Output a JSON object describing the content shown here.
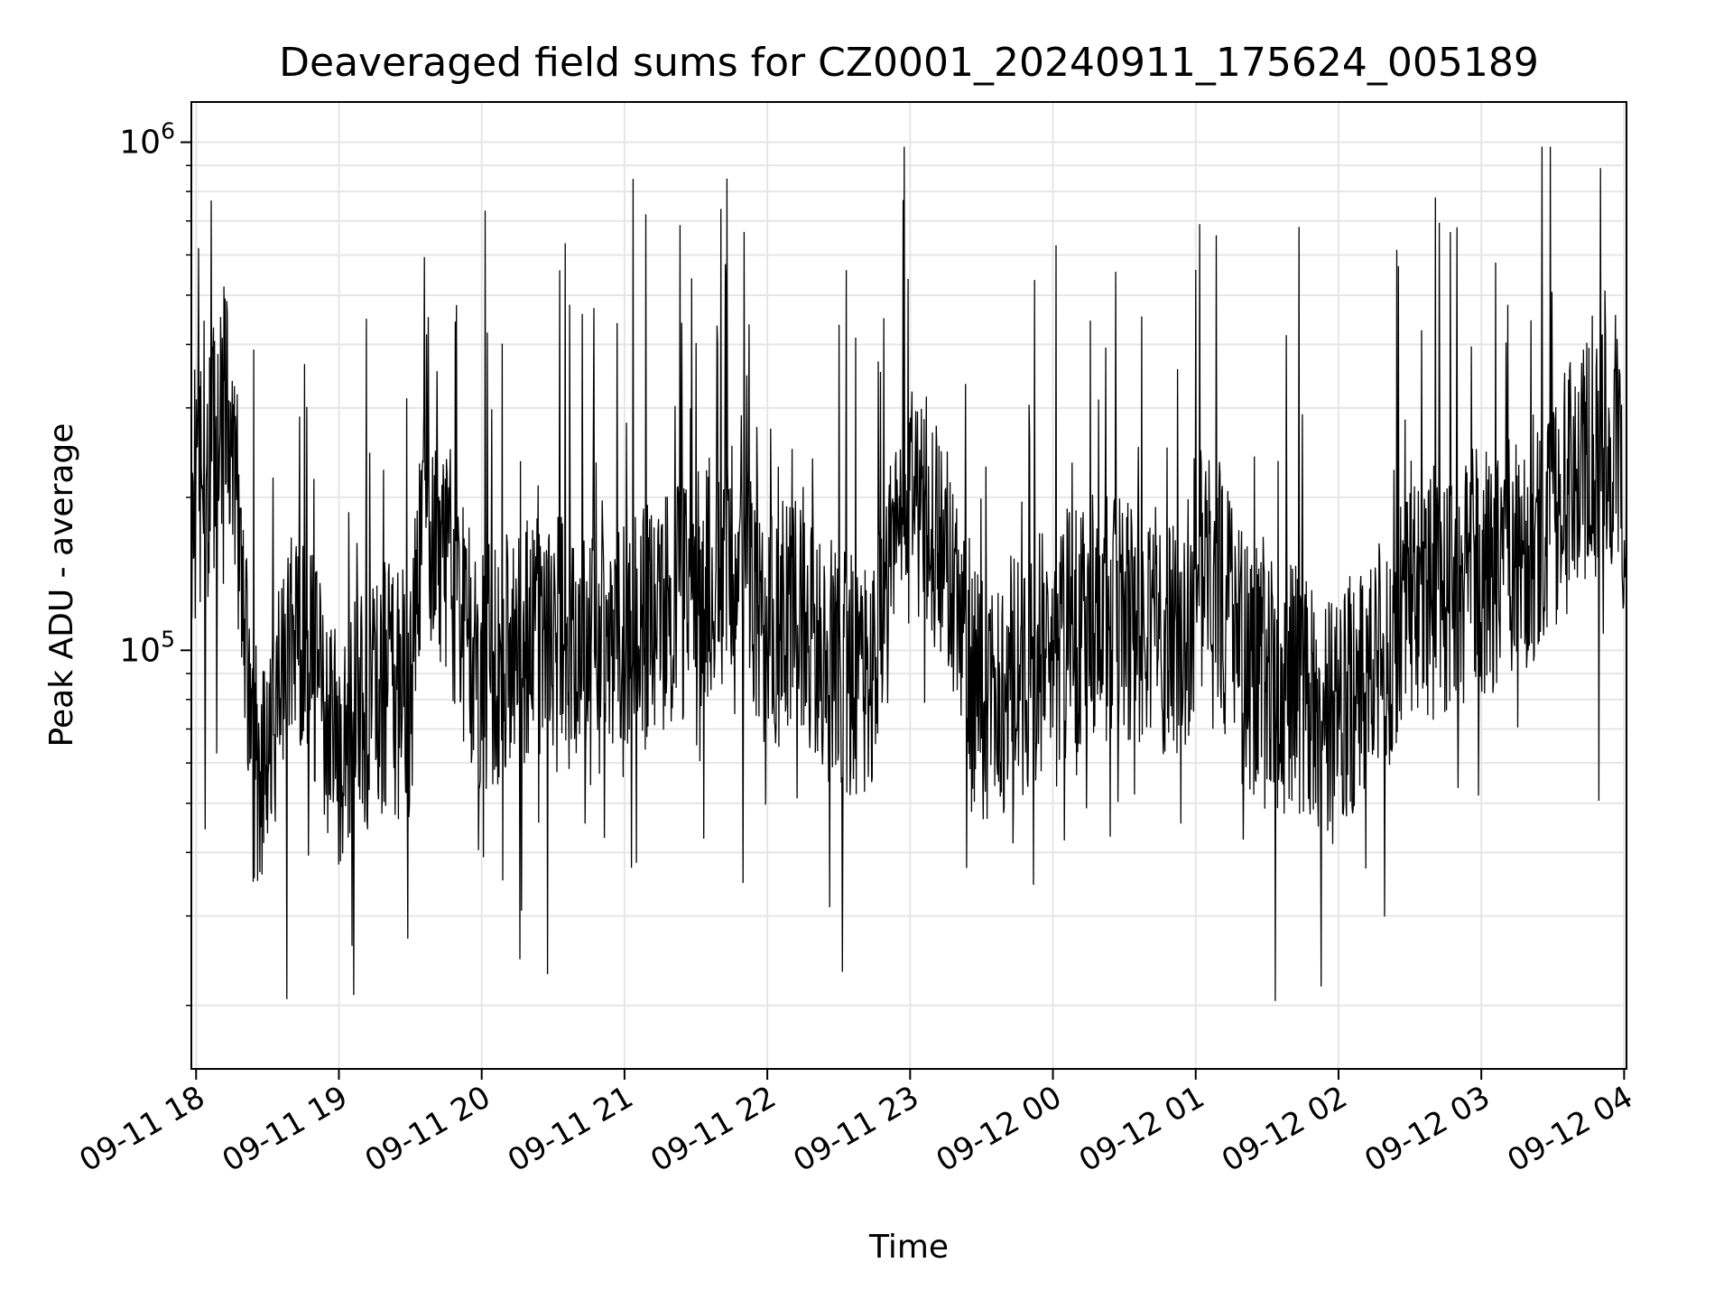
{
  "chart_data": {
    "type": "line",
    "title": "Deaveraged field sums for CZ0001_20240911_175624_005189",
    "xlabel": "Time",
    "ylabel": "Peak ADU - average",
    "y_scale": "log",
    "ylim": [
      15000,
      1200000
    ],
    "xlim": [
      "09-11 17:58",
      "09-12 04:01"
    ],
    "grid": true,
    "legend": "none",
    "x_ticks": [
      "09-11 18",
      "09-11 19",
      "09-11 20",
      "09-11 21",
      "09-11 22",
      "09-11 23",
      "09-12 00",
      "09-12 01",
      "09-12 02",
      "09-12 03",
      "09-12 04"
    ],
    "y_ticks": [
      {
        "value": 100000,
        "base": "10",
        "exp": "5"
      },
      {
        "value": 1000000,
        "base": "10",
        "exp": "6"
      }
    ],
    "colors": {
      "line": "#000000",
      "grid": "#e6e6e6",
      "axes": "#000000"
    },
    "series": [
      {
        "x": [
          "09-11 17:58",
          "09-11 18:05",
          "09-11 18:12",
          "09-11 18:18",
          "09-11 18:24",
          "09-11 18:30",
          "09-11 18:40",
          "09-11 18:50",
          "09-11 19:00",
          "09-11 19:10",
          "09-11 19:20",
          "09-11 19:30",
          "09-11 19:35",
          "09-11 19:45",
          "09-11 20:00",
          "09-11 20:15",
          "09-11 20:30",
          "09-11 20:45",
          "09-11 21:00",
          "09-11 21:15",
          "09-11 21:30",
          "09-11 21:45",
          "09-11 22:00",
          "09-11 22:15",
          "09-11 22:30",
          "09-11 22:45",
          "09-11 22:55",
          "09-11 23:05",
          "09-11 23:15",
          "09-11 23:25",
          "09-11 23:40",
          "09-11 23:55",
          "09-12 00:10",
          "09-12 00:25",
          "09-12 00:40",
          "09-12 00:55",
          "09-12 01:05",
          "09-12 01:20",
          "09-12 01:35",
          "09-12 01:50",
          "09-12 02:00",
          "09-12 02:10",
          "09-12 02:25",
          "09-12 02:40",
          "09-12 02:55",
          "09-12 03:10",
          "09-12 03:25",
          "09-12 03:40",
          "09-12 03:55",
          "09-12 04:01"
        ],
        "y": [
          200000,
          220000,
          300000,
          180000,
          55000,
          70000,
          100000,
          90000,
          65000,
          75000,
          85000,
          80000,
          180000,
          150000,
          90000,
          100000,
          110000,
          95000,
          100000,
          120000,
          130000,
          160000,
          110000,
          120000,
          90000,
          85000,
          180000,
          200000,
          150000,
          80000,
          85000,
          100000,
          110000,
          120000,
          115000,
          105000,
          160000,
          95000,
          85000,
          80000,
          70000,
          90000,
          110000,
          130000,
          140000,
          150000,
          170000,
          220000,
          260000,
          200000
        ]
      }
    ]
  }
}
